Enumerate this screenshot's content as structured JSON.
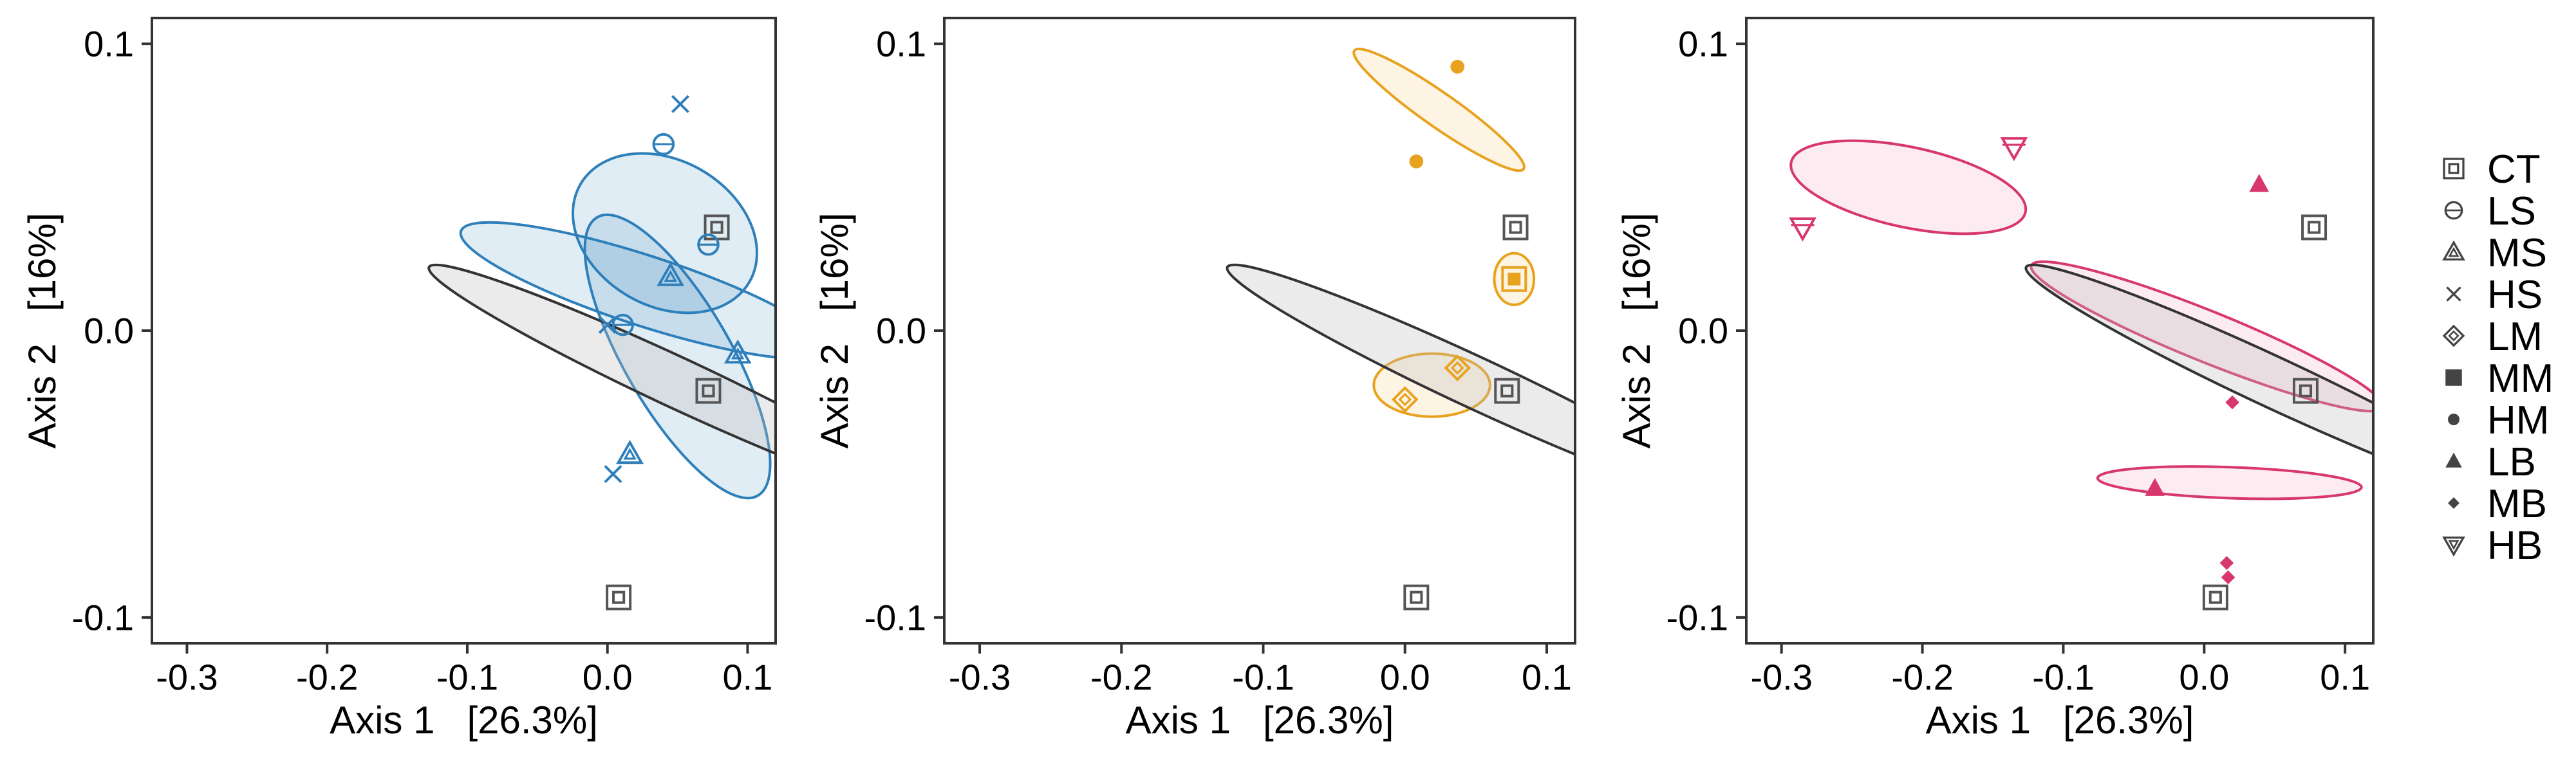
{
  "chart_data": [
    {
      "type": "scatter",
      "panel": "left",
      "xlabel": "Axis 1   [26.3%]",
      "ylabel": "Axis 2   [16%]",
      "xlim": [
        -0.325,
        0.12
      ],
      "ylim": [
        -0.109,
        0.109
      ],
      "xticks": [
        -0.3,
        -0.2,
        -0.1,
        0.0,
        0.1
      ],
      "xtick_labels": [
        "-0.3",
        "-0.2",
        "-0.1",
        "0.0",
        "0.1"
      ],
      "yticks": [
        -0.1,
        0.0,
        0.1
      ],
      "ytick_labels": [
        "-0.1",
        "0.0",
        "0.1"
      ],
      "series": [
        {
          "name": "CT",
          "points": [
            [
              0.078,
              0.036
            ],
            [
              0.072,
              -0.021
            ],
            [
              0.008,
              -0.093
            ]
          ]
        },
        {
          "name": "LS",
          "points": [
            [
              0.04,
              0.065
            ],
            [
              0.072,
              0.03
            ],
            [
              0.011,
              0.002
            ]
          ]
        },
        {
          "name": "MS",
          "points": [
            [
              0.045,
              0.019
            ],
            [
              0.093,
              -0.008
            ],
            [
              0.016,
              -0.043
            ]
          ]
        },
        {
          "name": "HS",
          "points": [
            [
              0.052,
              0.079
            ],
            [
              0.0,
              0.002
            ],
            [
              0.004,
              -0.05
            ]
          ]
        }
      ],
      "ellipses": [
        {
          "group": "HS",
          "color": "#2e7fba",
          "fill": "#2e7fba",
          "fill_opacity": 0.14,
          "center": [
            0.026,
            0.014
          ],
          "rx": 0.025,
          "ry": 0.067,
          "angle": -72
        },
        {
          "group": "LS",
          "color": "#2e7fba",
          "fill": "#2e7fba",
          "fill_opacity": 0.14,
          "center": [
            0.041,
            0.034
          ],
          "rx": 0.052,
          "ry": 0.034,
          "angle": -60
        },
        {
          "group": "MS",
          "color": "#2e7fba",
          "fill": "#2e7fba",
          "fill_opacity": 0.14,
          "center": [
            0.05,
            -0.009
          ],
          "rx": 0.038,
          "ry": 0.056,
          "angle": -30
        },
        {
          "group": "CT",
          "color": "#333333",
          "fill": "#bdbdbd",
          "fill_opacity": 0.3,
          "center": [
            0.049,
            -0.018
          ],
          "rx": 0.018,
          "ry": 0.095,
          "angle": -65
        }
      ]
    },
    {
      "type": "scatter",
      "panel": "middle",
      "xlabel": "Axis 1   [26.3%]",
      "ylabel": "Axis 2   [16%]",
      "xlim": [
        -0.325,
        0.12
      ],
      "ylim": [
        -0.109,
        0.109
      ],
      "xticks": [
        -0.3,
        -0.2,
        -0.1,
        0.0,
        0.1
      ],
      "xtick_labels": [
        "-0.3",
        "-0.2",
        "-0.1",
        "0.0",
        "0.1"
      ],
      "yticks": [
        -0.1,
        0.0,
        0.1
      ],
      "ytick_labels": [
        "-0.1",
        "0.0",
        "0.1"
      ],
      "series": [
        {
          "name": "CT",
          "points": [
            [
              0.078,
              0.036
            ],
            [
              0.072,
              -0.021
            ],
            [
              0.008,
              -0.093
            ]
          ]
        },
        {
          "name": "LM",
          "points": [
            [
              0.0,
              -0.024
            ],
            [
              0.037,
              -0.013
            ]
          ]
        },
        {
          "name": "MM",
          "points": [
            [
              0.077,
              0.018
            ]
          ]
        },
        {
          "name": "HM",
          "points": [
            [
              0.037,
              0.092
            ],
            [
              0.008,
              0.059
            ]
          ]
        }
      ],
      "ellipses": [
        {
          "group": "HM",
          "color": "#e8a21e",
          "fill": "#f6c46b",
          "fill_opacity": 0.18,
          "center": [
            0.024,
            0.077
          ],
          "rx": 0.012,
          "ry": 0.036,
          "angle": -55
        },
        {
          "group": "LM",
          "color": "#e8a21e",
          "fill": "#f6c46b",
          "fill_opacity": 0.18,
          "center": [
            0.019,
            -0.019
          ],
          "rx": 0.041,
          "ry": 0.011,
          "angle": 0
        },
        {
          "group": "MM",
          "color": "#e8a21e",
          "fill": "#f6c46b",
          "fill_opacity": 0.18,
          "center": [
            0.077,
            0.018
          ],
          "rx": 0.014,
          "ry": 0.009,
          "angle": 0
        },
        {
          "group": "CT",
          "color": "#333333",
          "fill": "#bdbdbd",
          "fill_opacity": 0.3,
          "center": [
            0.049,
            -0.018
          ],
          "rx": 0.018,
          "ry": 0.095,
          "angle": -65
        }
      ]
    },
    {
      "type": "scatter",
      "panel": "right",
      "xlabel": "Axis 1   [26.3%]",
      "ylabel": "Axis 2   [16%]",
      "xlim": [
        -0.325,
        0.12
      ],
      "ylim": [
        -0.109,
        0.109
      ],
      "xticks": [
        -0.3,
        -0.2,
        -0.1,
        0.0,
        0.1
      ],
      "xtick_labels": [
        "-0.3",
        "-0.2",
        "-0.1",
        "0.0",
        "0.1"
      ],
      "yticks": [
        -0.1,
        0.0,
        0.1
      ],
      "ytick_labels": [
        "-0.1",
        "0.0",
        "0.1"
      ],
      "series": [
        {
          "name": "CT",
          "points": [
            [
              0.078,
              0.036
            ],
            [
              0.072,
              -0.021
            ],
            [
              0.008,
              -0.093
            ]
          ]
        },
        {
          "name": "LB",
          "points": [
            [
              0.039,
              0.051
            ],
            [
              -0.035,
              -0.055
            ]
          ]
        },
        {
          "name": "MB",
          "points": [
            [
              0.02,
              -0.025
            ],
            [
              0.016,
              -0.081
            ],
            [
              0.017,
              -0.086
            ]
          ]
        },
        {
          "name": "HB",
          "points": [
            [
              -0.135,
              0.064
            ],
            [
              -0.285,
              0.036
            ]
          ]
        }
      ],
      "ellipses": [
        {
          "group": "HB",
          "color": "#d8376e",
          "fill": "#f29bb8",
          "fill_opacity": 0.2,
          "center": [
            -0.21,
            0.05
          ],
          "rx": 0.085,
          "ry": 0.014,
          "angle": 12
        },
        {
          "group": "LB",
          "color": "#d8376e",
          "fill": "#f29bb8",
          "fill_opacity": 0.2,
          "center": [
            0.002,
            -0.002
          ],
          "rx": 0.018,
          "ry": 0.066,
          "angle": -68
        },
        {
          "group": "MB",
          "color": "#d8376e",
          "fill": "#f29bb8",
          "fill_opacity": 0.2,
          "center": [
            0.018,
            -0.053
          ],
          "rx": 0.011,
          "ry": 0.046,
          "angle": -88
        },
        {
          "group": "CT",
          "color": "#333333",
          "fill": "#bdbdbd",
          "fill_opacity": 0.3,
          "center": [
            0.049,
            -0.018
          ],
          "rx": 0.018,
          "ry": 0.095,
          "angle": -65
        }
      ]
    }
  ],
  "series_colors": {
    "CT": "#555555",
    "LS": "#2e7fba",
    "MS": "#2e7fba",
    "HS": "#2e7fba",
    "LM": "#e8a21e",
    "MM": "#e8a21e",
    "HM": "#e8a21e",
    "LB": "#d8376e",
    "MB": "#d8376e",
    "HB": "#d8376e"
  },
  "markers": {
    "CT": "square-boxed",
    "LS": "circle-plus",
    "MS": "triangle-open",
    "HS": "cross",
    "LM": "diamond-boxed",
    "MM": "square-boxed-filled",
    "HM": "circle-filled",
    "LB": "triangle-filled",
    "MB": "diamond-filled",
    "HB": "triangle-down-boxed"
  },
  "legend": {
    "position": "right",
    "entries": [
      {
        "label": "CT",
        "marker": "square-boxed"
      },
      {
        "label": "LS",
        "marker": "circle-plus"
      },
      {
        "label": "MS",
        "marker": "triangle-open"
      },
      {
        "label": "HS",
        "marker": "cross"
      },
      {
        "label": "LM",
        "marker": "diamond-open"
      },
      {
        "label": "MM",
        "marker": "square-filled"
      },
      {
        "label": "HM",
        "marker": "circle-filled"
      },
      {
        "label": "LB",
        "marker": "triangle-filled"
      },
      {
        "label": "MB",
        "marker": "diamond-filled"
      },
      {
        "label": "HB",
        "marker": "triangle-down-open"
      }
    ]
  }
}
